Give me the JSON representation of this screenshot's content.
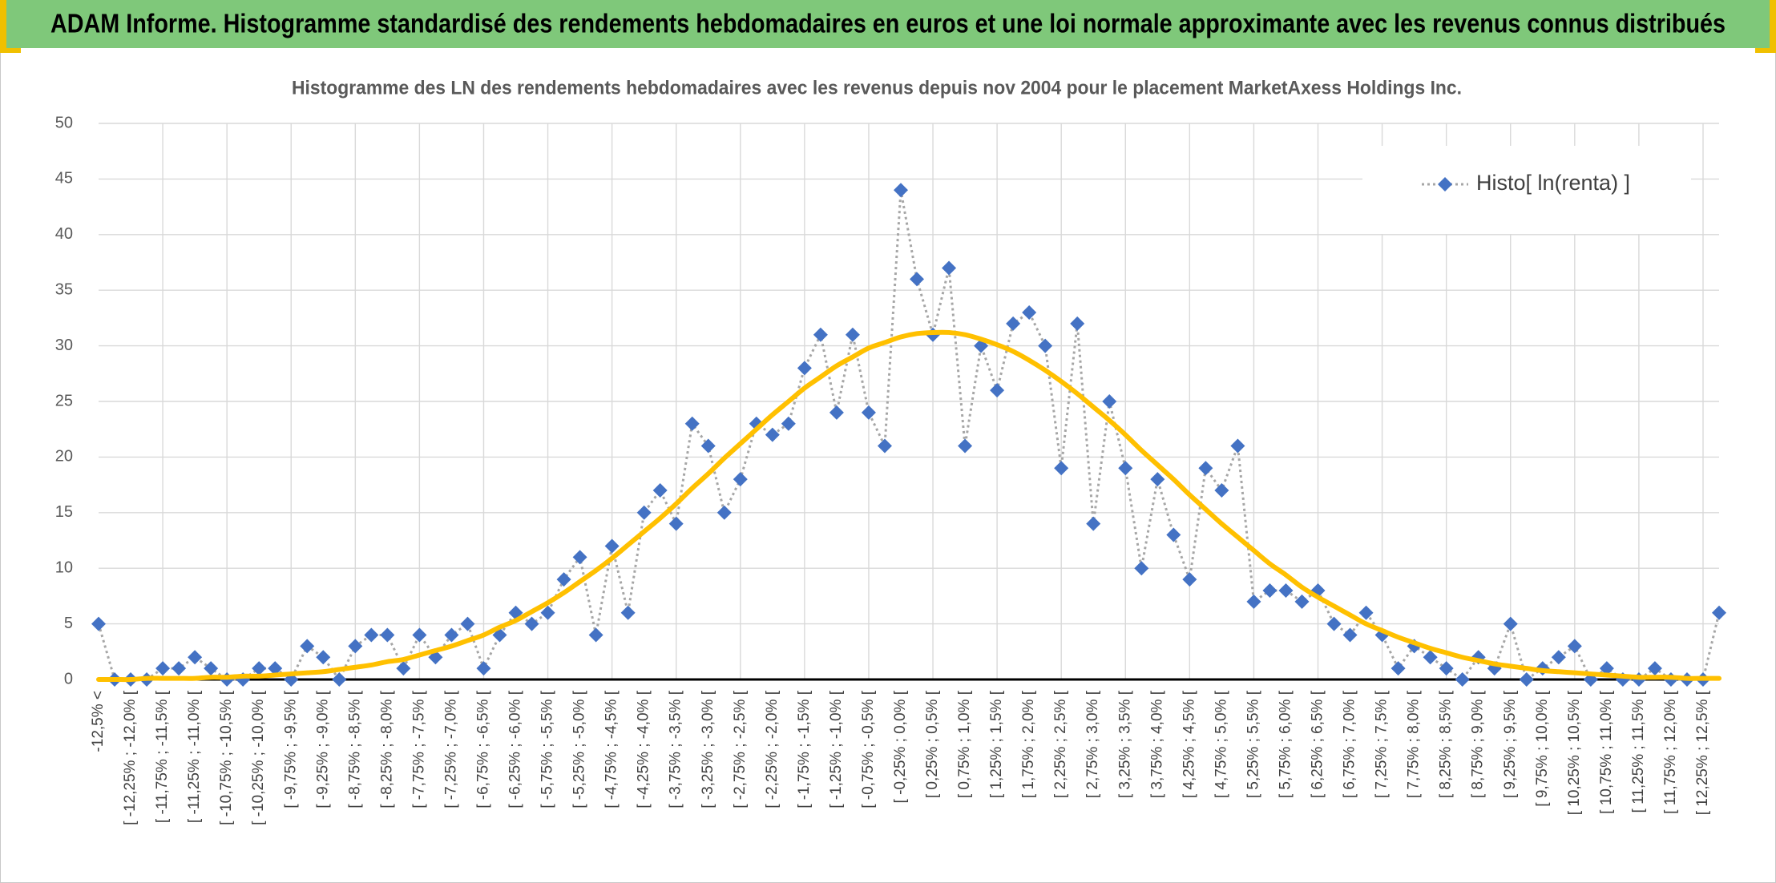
{
  "header": {
    "title": "ADAM Informe. Histogramme standardisé des rendements hebdomadaires en euros et une loi normale approximante avec les revenus connus distribués"
  },
  "chart_data": {
    "type": "line",
    "title": "Histogramme des LN des rendements hebdomadaires avec les revenus depuis nov 2004 pour le placement MarketAxess Holdings Inc.",
    "categories": [
      "-12,5% <",
      null,
      "[ -12,25% ; -12,0% [",
      null,
      "[ -11,75% ; -11,5% [",
      null,
      "[ -11,25% ; -11,0% [",
      null,
      "[ -10,75% ; -10,5% [",
      null,
      "[ -10,25% ; -10,0% [",
      null,
      "[ -9,75% ; -9,5% [",
      null,
      "[ -9,25% ; -9,0% [",
      null,
      "[ -8,75% ; -8,5% [",
      null,
      "[ -8,25% ; -8,0% [",
      null,
      "[ -7,75% ; -7,5% [",
      null,
      "[ -7,25% ; -7,0% [",
      null,
      "[ -6,75% ; -6,5% [",
      null,
      "[ -6,25% ; -6,0% [",
      null,
      "[ -5,75% ; -5,5% [",
      null,
      "[ -5,25% ; -5,0% [",
      null,
      "[ -4,75% ; -4,5% [",
      null,
      "[ -4,25% ; -4,0% [",
      null,
      "[ -3,75% ; -3,5% [",
      null,
      "[ -3,25% ; -3,0% [",
      null,
      "[ -2,75% ; -2,5% [",
      null,
      "[ -2,25% ; -2,0% [",
      null,
      "[ -1,75% ; -1,5% [",
      null,
      "[ -1,25% ; -1,0% [",
      null,
      "[ -0,75% ; -0,5% [",
      null,
      "[ -0,25% ; 0,0% [",
      null,
      "[ 0,25% ; 0,5% [",
      null,
      "[ 0,75% ; 1,0% [",
      null,
      "[ 1,25% ; 1,5% [",
      null,
      "[ 1,75% ; 2,0% [",
      null,
      "[ 2,25% ; 2,5% [",
      null,
      "[ 2,75% ; 3,0% [",
      null,
      "[ 3,25% ; 3,5% [",
      null,
      "[ 3,75% ; 4,0% [",
      null,
      "[ 4,25% ; 4,5% [",
      null,
      "[ 4,75% ; 5,0% [",
      null,
      "[ 5,25% ; 5,5% [",
      null,
      "[ 5,75% ; 6,0% [",
      null,
      "[ 6,25% ; 6,5% [",
      null,
      "[ 6,75% ; 7,0% [",
      null,
      "[ 7,25% ; 7,5% [",
      null,
      "[ 7,75% ; 8,0% [",
      null,
      "[ 8,25% ; 8,5% [",
      null,
      "[ 8,75% ; 9,0% [",
      null,
      "[ 9,25% ; 9,5% [",
      null,
      "[ 9,75% ; 10,0% [",
      null,
      "[ 10,25% ; 10,5% [",
      null,
      "[ 10,75% ; 11,0% [",
      null,
      "[ 11,25% ; 11,5% [",
      null,
      "[ 11,75% ; 12,0% [",
      null,
      "[ 12,25% ; 12,5% [",
      null
    ],
    "series": [
      {
        "name": "Histo[ ln(renta) ]",
        "color": "#4472c4",
        "line_color": "#a6a6a6",
        "values": [
          5,
          0,
          0,
          0,
          1,
          1,
          2,
          1,
          0,
          0,
          1,
          1,
          0,
          3,
          2,
          0,
          3,
          4,
          4,
          1,
          4,
          2,
          4,
          5,
          1,
          4,
          6,
          5,
          6,
          9,
          11,
          4,
          12,
          6,
          15,
          17,
          14,
          23,
          21,
          15,
          18,
          23,
          22,
          23,
          28,
          31,
          24,
          31,
          24,
          21,
          44,
          36,
          31,
          37,
          21,
          30,
          26,
          32,
          33,
          30,
          19,
          32,
          14,
          25,
          19,
          10,
          18,
          13,
          9,
          19,
          17,
          21,
          7,
          8,
          8,
          7,
          8,
          5,
          4,
          6,
          4,
          1,
          3,
          2,
          1,
          0,
          2,
          1,
          5,
          0,
          1,
          2,
          3,
          0,
          1,
          0,
          0,
          1,
          0,
          0,
          0,
          6
        ]
      },
      {
        "color": "#ffc000",
        "values": [
          0.0,
          0.0,
          0.0,
          0.1,
          0.1,
          0.1,
          0.1,
          0.2,
          0.2,
          0.3,
          0.3,
          0.4,
          0.5,
          0.6,
          0.7,
          0.9,
          1.1,
          1.3,
          1.6,
          1.8,
          2.2,
          2.6,
          3.0,
          3.5,
          4.0,
          4.7,
          5.3,
          6.1,
          6.9,
          7.8,
          8.8,
          9.8,
          10.9,
          12.1,
          13.3,
          14.5,
          15.8,
          17.2,
          18.5,
          19.9,
          21.2,
          22.5,
          23.8,
          25.0,
          26.2,
          27.2,
          28.2,
          29.0,
          29.8,
          30.3,
          30.8,
          31.1,
          31.2,
          31.2,
          31.0,
          30.6,
          30.1,
          29.5,
          28.7,
          27.8,
          26.8,
          25.7,
          24.5,
          23.3,
          22.0,
          20.6,
          19.3,
          18.0,
          16.6,
          15.3,
          14.0,
          12.8,
          11.6,
          10.4,
          9.4,
          8.3,
          7.4,
          6.6,
          5.8,
          5.0,
          4.4,
          3.8,
          3.3,
          2.8,
          2.4,
          2.0,
          1.7,
          1.4,
          1.2,
          1.0,
          0.8,
          0.7,
          0.6,
          0.5,
          0.4,
          0.3,
          0.2,
          0.2,
          0.2,
          0.1,
          0.1,
          0.1
        ]
      }
    ],
    "ylim": [
      0,
      50
    ],
    "yticks": [
      0,
      5,
      10,
      15,
      20,
      25,
      30,
      35,
      40,
      45,
      50
    ],
    "grid": true,
    "legend": "upper right"
  }
}
